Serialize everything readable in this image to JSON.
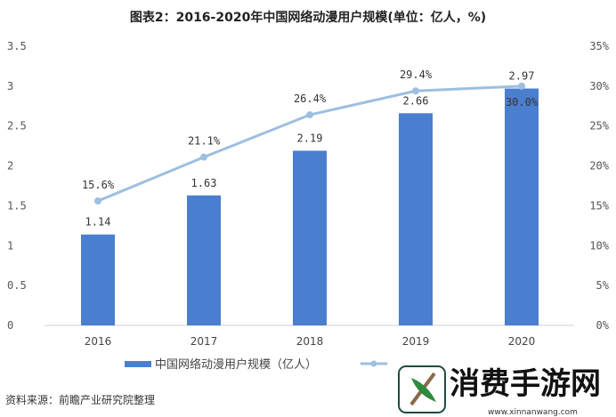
{
  "chart_data": {
    "type": "bar",
    "title": "图表2：2016-2020年中国网络动漫用户规模(单位：亿人，%)",
    "categories": [
      "2016",
      "2017",
      "2018",
      "2019",
      "2020"
    ],
    "series": [
      {
        "name": "中国网络动漫用户规模（亿人）",
        "type": "bar",
        "axis": "left",
        "values": [
          1.14,
          1.63,
          2.19,
          2.66,
          2.97
        ],
        "labels": [
          "1.14",
          "1.63",
          "2.19",
          "2.66",
          "2.97"
        ],
        "color": "#4a7fcf"
      },
      {
        "name": "",
        "type": "line",
        "axis": "right",
        "values": [
          15.6,
          21.1,
          26.4,
          29.4,
          30.0
        ],
        "labels": [
          "15.6%",
          "21.1%",
          "26.4%",
          "29.4%",
          "30.0%"
        ],
        "color": "#9dbfe0"
      }
    ],
    "yleft": {
      "ylim": [
        0,
        3.5
      ],
      "ticks": [
        "0",
        "0.5",
        "1",
        "1.5",
        "2",
        "2.5",
        "3",
        "3.5"
      ]
    },
    "yright": {
      "ylim": [
        0,
        35
      ],
      "ticks": [
        "0%",
        "5%",
        "10%",
        "15%",
        "20%",
        "25%",
        "30%",
        "35%"
      ]
    },
    "legend": "bottom",
    "grid": false
  },
  "source": "资料来源：前瞻产业研究院整理",
  "watermark": {
    "name": "消费手游网",
    "url": "www.xinnanwang.com"
  }
}
